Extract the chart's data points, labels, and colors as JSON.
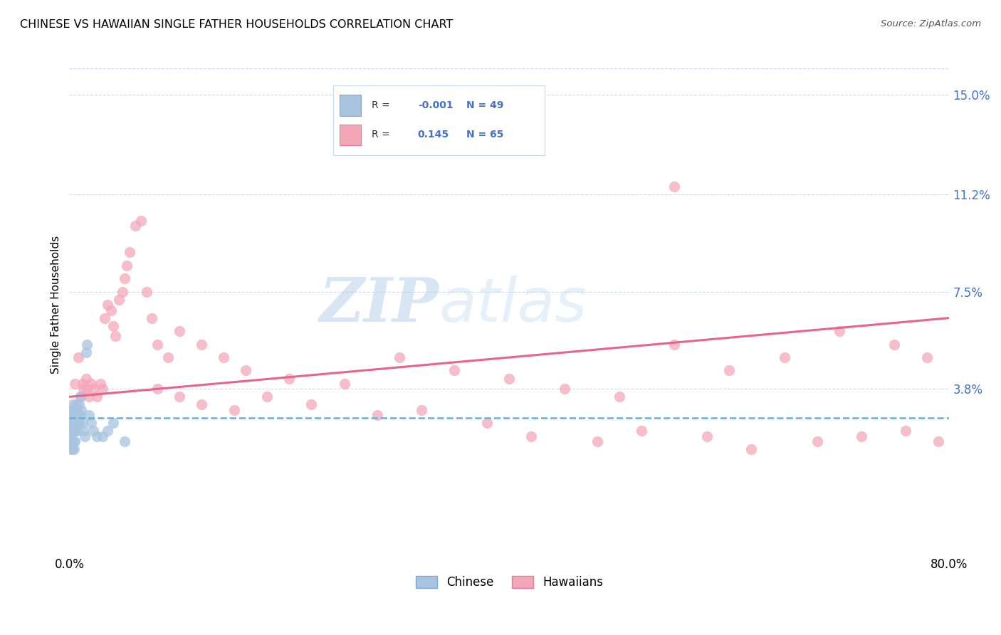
{
  "title": "CHINESE VS HAWAIIAN SINGLE FATHER HOUSEHOLDS CORRELATION CHART",
  "source": "Source: ZipAtlas.com",
  "ylabel": "Single Father Households",
  "ytick_labels": [
    "15.0%",
    "11.2%",
    "7.5%",
    "3.8%"
  ],
  "ytick_values": [
    0.15,
    0.112,
    0.075,
    0.038
  ],
  "xlim": [
    0.0,
    0.8
  ],
  "ylim": [
    -0.025,
    0.165
  ],
  "legend_R_chinese": "-0.001",
  "legend_N_chinese": "49",
  "legend_R_hawaiian": "0.145",
  "legend_N_hawaiian": "65",
  "chinese_color": "#a8c4e0",
  "chinese_edge_color": "#7aaace",
  "hawaiian_color": "#f4a7b9",
  "hawaiian_edge_color": "#e8789a",
  "trend_chinese_color": "#6baed6",
  "trend_hawaiian_color": "#e8648a",
  "background_color": "#ffffff",
  "grid_color": "#c8d8e8",
  "tick_color": "#4472c4",
  "chinese_x": [
    0.001,
    0.001,
    0.001,
    0.002,
    0.002,
    0.002,
    0.002,
    0.002,
    0.003,
    0.003,
    0.003,
    0.003,
    0.003,
    0.003,
    0.004,
    0.004,
    0.004,
    0.004,
    0.004,
    0.005,
    0.005,
    0.005,
    0.005,
    0.006,
    0.006,
    0.006,
    0.007,
    0.007,
    0.007,
    0.008,
    0.008,
    0.009,
    0.009,
    0.01,
    0.01,
    0.011,
    0.012,
    0.013,
    0.014,
    0.015,
    0.016,
    0.018,
    0.02,
    0.022,
    0.025,
    0.03,
    0.035,
    0.04,
    0.05
  ],
  "chinese_y": [
    0.028,
    0.022,
    0.018,
    0.03,
    0.025,
    0.022,
    0.018,
    0.015,
    0.032,
    0.028,
    0.025,
    0.022,
    0.018,
    0.015,
    0.03,
    0.025,
    0.022,
    0.018,
    0.015,
    0.028,
    0.025,
    0.022,
    0.018,
    0.032,
    0.028,
    0.025,
    0.03,
    0.025,
    0.022,
    0.028,
    0.025,
    0.032,
    0.025,
    0.035,
    0.028,
    0.03,
    0.025,
    0.022,
    0.02,
    0.052,
    0.055,
    0.028,
    0.025,
    0.022,
    0.02,
    0.02,
    0.022,
    0.025,
    0.018
  ],
  "hawaiian_x": [
    0.005,
    0.008,
    0.01,
    0.012,
    0.013,
    0.015,
    0.016,
    0.018,
    0.02,
    0.022,
    0.025,
    0.028,
    0.03,
    0.032,
    0.035,
    0.038,
    0.04,
    0.042,
    0.045,
    0.048,
    0.05,
    0.052,
    0.055,
    0.06,
    0.065,
    0.07,
    0.075,
    0.08,
    0.09,
    0.1,
    0.12,
    0.14,
    0.16,
    0.2,
    0.25,
    0.3,
    0.35,
    0.4,
    0.5,
    0.55,
    0.6,
    0.65,
    0.7,
    0.75,
    0.78,
    0.08,
    0.1,
    0.12,
    0.15,
    0.18,
    0.22,
    0.28,
    0.32,
    0.38,
    0.42,
    0.48,
    0.52,
    0.58,
    0.62,
    0.68,
    0.72,
    0.76,
    0.79,
    0.45,
    0.55
  ],
  "hawaiian_y": [
    0.04,
    0.05,
    0.035,
    0.04,
    0.038,
    0.042,
    0.038,
    0.035,
    0.04,
    0.038,
    0.035,
    0.04,
    0.038,
    0.065,
    0.07,
    0.068,
    0.062,
    0.058,
    0.072,
    0.075,
    0.08,
    0.085,
    0.09,
    0.1,
    0.102,
    0.075,
    0.065,
    0.055,
    0.05,
    0.06,
    0.055,
    0.05,
    0.045,
    0.042,
    0.04,
    0.05,
    0.045,
    0.042,
    0.035,
    0.055,
    0.045,
    0.05,
    0.06,
    0.055,
    0.05,
    0.038,
    0.035,
    0.032,
    0.03,
    0.035,
    0.032,
    0.028,
    0.03,
    0.025,
    0.02,
    0.018,
    0.022,
    0.02,
    0.015,
    0.018,
    0.02,
    0.022,
    0.018,
    0.038,
    0.115
  ],
  "trend_haw_x0": 0.0,
  "trend_haw_y0": 0.035,
  "trend_haw_x1": 0.8,
  "trend_haw_y1": 0.065,
  "trend_chi_x0": 0.0,
  "trend_chi_y0": 0.027,
  "trend_chi_x1": 0.8,
  "trend_chi_y1": 0.027
}
